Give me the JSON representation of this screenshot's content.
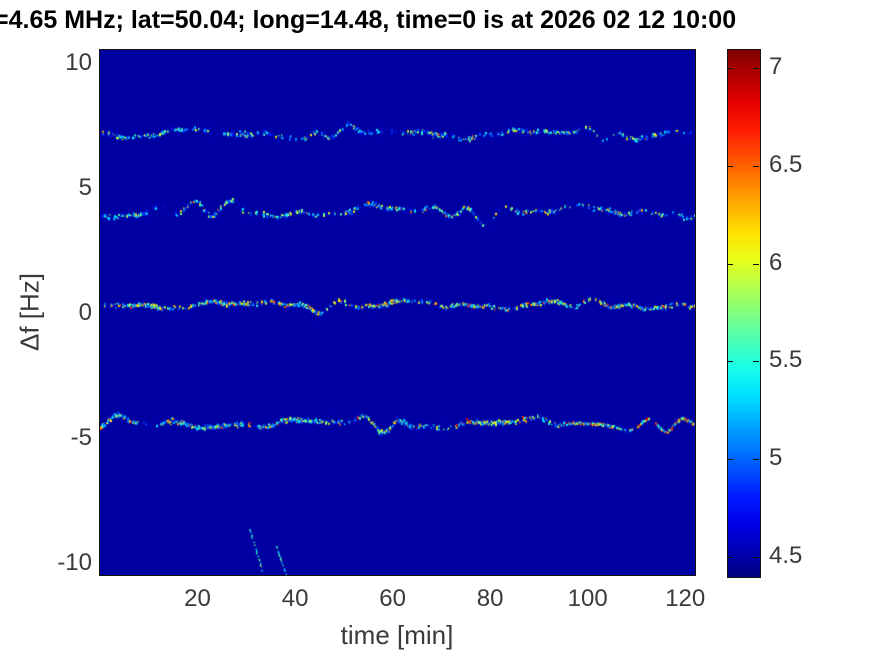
{
  "chart_data": {
    "type": "heatmap",
    "subtype": "spectrogram",
    "title": "=4.65 MHz;  lat=50.04; long=14.48, time=0 is at 2026 02 12 10:00",
    "xlabel": "time [min]",
    "ylabel": "Δf [Hz]",
    "xlim": [
      0,
      122
    ],
    "ylim": [
      -10.5,
      10.5
    ],
    "xticks": [
      20,
      40,
      60,
      80,
      100,
      120
    ],
    "yticks": [
      10,
      5,
      0,
      -5,
      -10
    ],
    "grid": false,
    "colormap": "jet",
    "background_value": 4.5,
    "colorbar": {
      "position": "right",
      "vmin": 4.41,
      "vmax": 7.09,
      "ticks": [
        4.5,
        5,
        5.5,
        6,
        6.5,
        7
      ]
    },
    "traces": [
      {
        "name": "doppler-line-plus7hz",
        "center_hz": 7.15,
        "wiggle_amp_hz": 0.22,
        "density": 0.55,
        "jitter_hz": 0.16,
        "value_range": [
          4.8,
          6.0
        ],
        "hot_prob": 0.05,
        "hot_value_range": [
          6.0,
          6.5
        ],
        "hot_from_min": 60
      },
      {
        "name": "doppler-line-plus4hz",
        "center_hz": 4.05,
        "wiggle_amp_hz": 0.3,
        "density": 0.6,
        "jitter_hz": 0.15,
        "value_range": [
          4.8,
          6.1
        ],
        "hot_prob": 0.06,
        "hot_value_range": [
          6.0,
          6.6
        ],
        "hot_from_min": 50
      },
      {
        "name": "doppler-line-0hz",
        "center_hz": 0.3,
        "wiggle_amp_hz": 0.18,
        "density": 0.85,
        "jitter_hz": 0.14,
        "value_range": [
          4.9,
          6.2
        ],
        "hot_prob": 0.1,
        "hot_value_range": [
          6.1,
          6.6
        ],
        "hot_from_min": 0
      },
      {
        "name": "doppler-line-minus4hz",
        "center_hz": -4.45,
        "wiggle_amp_hz": 0.22,
        "density": 0.95,
        "jitter_hz": 0.17,
        "value_range": [
          4.9,
          6.3
        ],
        "hot_prob": 0.12,
        "hot_value_range": [
          6.2,
          7.0
        ],
        "hot_from_min": 95
      }
    ],
    "streaks": [
      {
        "from_min": 30.5,
        "from_hz": -8.6,
        "to_min": 33.2,
        "to_hz": -10.3,
        "value_range": [
          5.1,
          5.8
        ]
      },
      {
        "from_min": 35.8,
        "from_hz": -9.2,
        "to_min": 38.3,
        "to_hz": -10.6,
        "value_range": [
          5.1,
          5.8
        ]
      }
    ]
  },
  "colors": {
    "figure_background": "#ffffff",
    "axis_text": "#3a3a3a",
    "title_text": "#000000",
    "plot_border": "#151515"
  }
}
